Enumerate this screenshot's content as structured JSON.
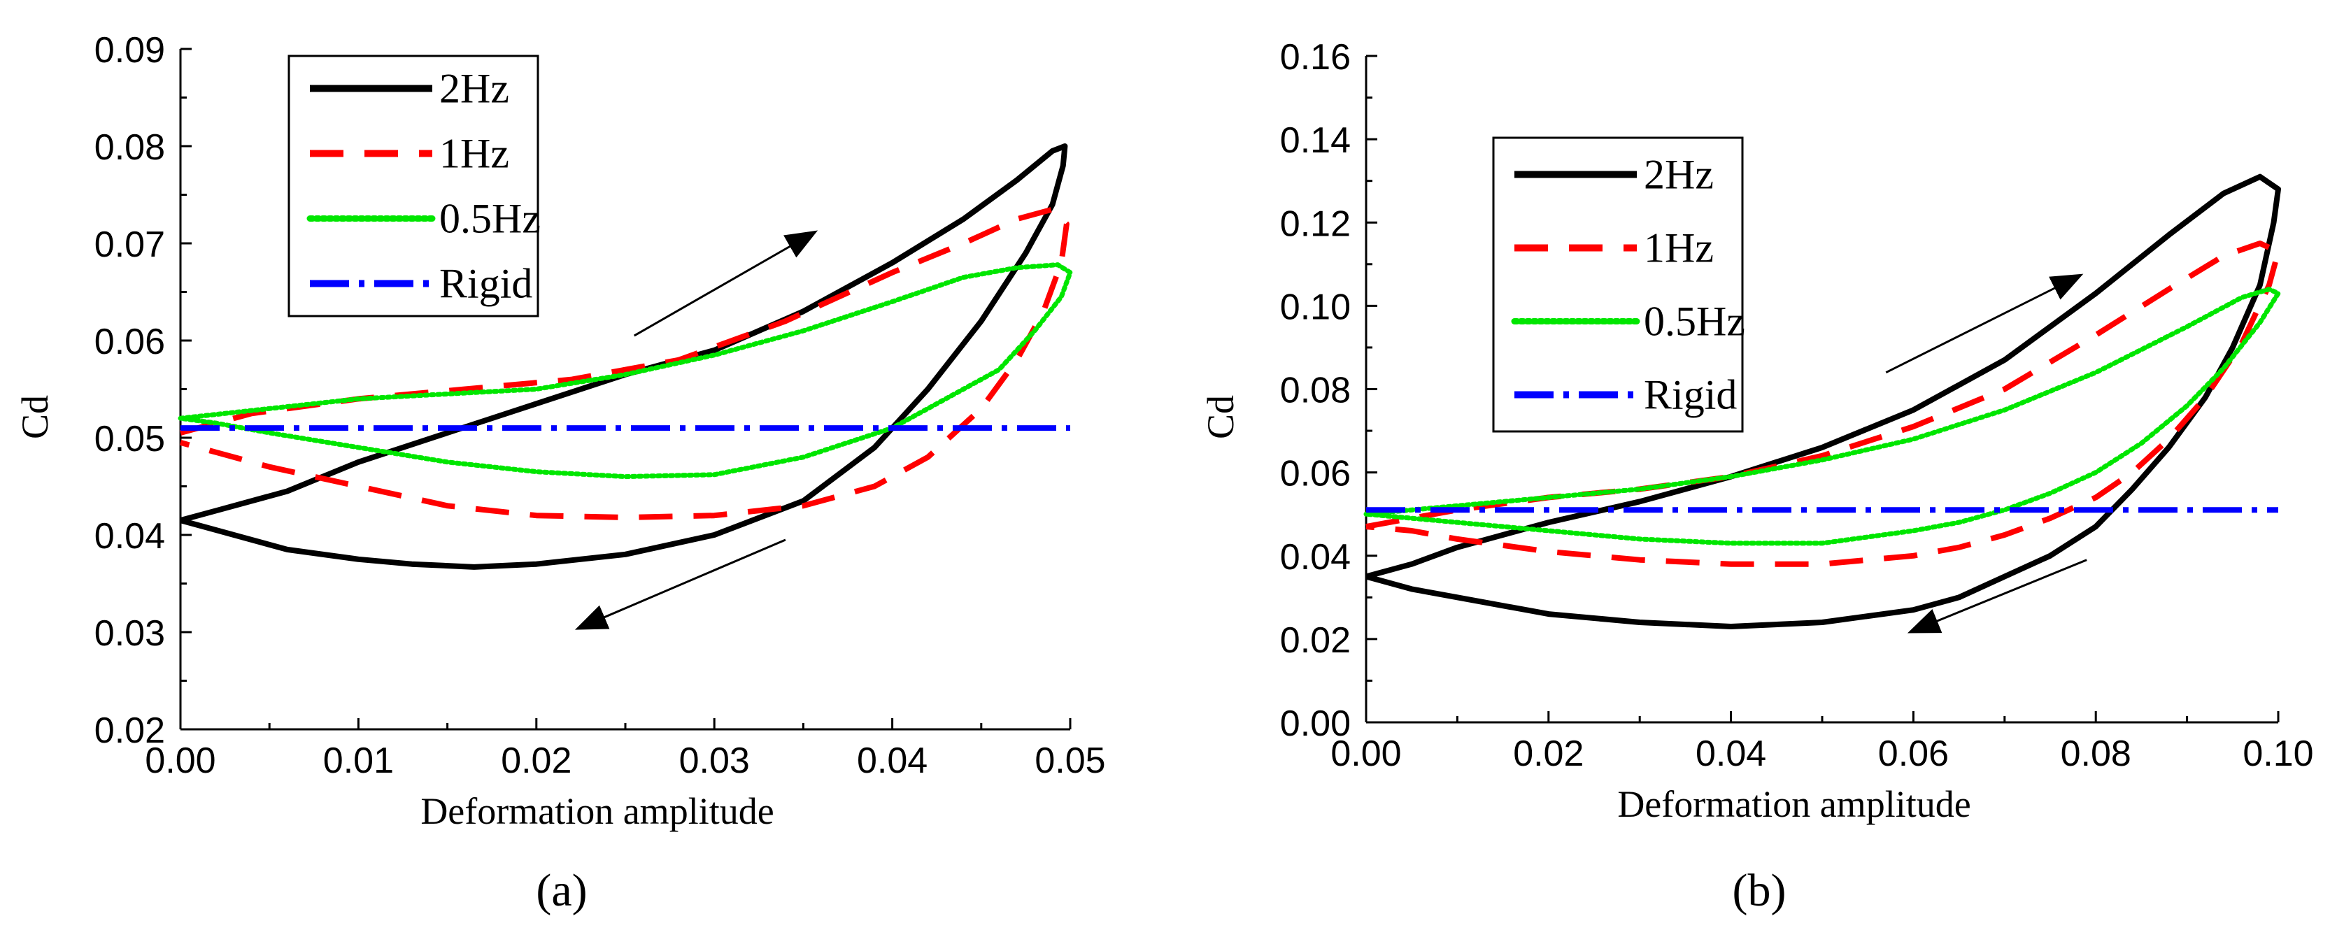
{
  "figure": {
    "panel_labels": [
      "(a)",
      "(b)"
    ]
  },
  "colors": {
    "2Hz": "#000000",
    "1Hz": "#ff0000",
    "0.5Hz": "#00e600",
    "Rigid": "#0000ff",
    "annotation": "#000000"
  },
  "chart_data": [
    {
      "type": "line",
      "panel": "(a)",
      "xlabel": "Deformation amplitude",
      "ylabel": "Cd",
      "xlim": [
        0,
        0.05
      ],
      "ylim": [
        0.02,
        0.09
      ],
      "xticks": [
        0.0,
        0.01,
        0.02,
        0.03,
        0.04,
        0.05
      ],
      "xtick_labels": [
        "0.00",
        "0.01",
        "0.02",
        "0.03",
        "0.04",
        "0.05"
      ],
      "yticks": [
        0.02,
        0.03,
        0.04,
        0.05,
        0.06,
        0.07,
        0.08,
        0.09
      ],
      "ytick_labels": [
        "0.02",
        "0.03",
        "0.04",
        "0.05",
        "0.06",
        "0.07",
        "0.08",
        "0.09"
      ],
      "grid": false,
      "legend": "top-left",
      "annotations": [
        {
          "type": "arrow",
          "direction": "up-right",
          "from": [
            0.0255,
            0.0605
          ],
          "to": [
            0.0355,
            0.071
          ]
        },
        {
          "type": "arrow",
          "direction": "down-left",
          "from": [
            0.034,
            0.0395
          ],
          "to": [
            0.0225,
            0.0305
          ]
        }
      ],
      "series": [
        {
          "name": "2Hz",
          "style": "solid",
          "x": [
            0,
            0.002,
            0.006,
            0.01,
            0.015,
            0.02,
            0.025,
            0.03,
            0.035,
            0.04,
            0.044,
            0.047,
            0.049,
            0.0497,
            0.0496,
            0.049,
            0.0475,
            0.045,
            0.042,
            0.039,
            0.035,
            0.03,
            0.025,
            0.02,
            0.0165,
            0.013,
            0.01,
            0.006,
            0.003,
            0
          ],
          "y": [
            0.0415,
            0.0425,
            0.0445,
            0.0475,
            0.0505,
            0.0535,
            0.0565,
            0.059,
            0.063,
            0.068,
            0.0725,
            0.0765,
            0.0795,
            0.08,
            0.078,
            0.074,
            0.069,
            0.062,
            0.055,
            0.049,
            0.0435,
            0.04,
            0.038,
            0.037,
            0.0367,
            0.037,
            0.0375,
            0.0385,
            0.04,
            0.0415
          ]
        },
        {
          "name": "1Hz",
          "style": "dashed",
          "x": [
            0,
            0.004,
            0.01,
            0.016,
            0.022,
            0.028,
            0.034,
            0.04,
            0.044,
            0.047,
            0.049,
            0.0498,
            0.0495,
            0.0485,
            0.047,
            0.045,
            0.042,
            0.039,
            0.035,
            0.03,
            0.025,
            0.02,
            0.015,
            0.01,
            0.005,
            0.002,
            0
          ],
          "y": [
            0.0505,
            0.0525,
            0.054,
            0.055,
            0.056,
            0.058,
            0.062,
            0.067,
            0.07,
            0.0725,
            0.0735,
            0.072,
            0.068,
            0.063,
            0.058,
            0.053,
            0.048,
            0.045,
            0.043,
            0.042,
            0.0418,
            0.042,
            0.043,
            0.045,
            0.047,
            0.0485,
            0.0495
          ]
        },
        {
          "name": "0.5Hz",
          "style": "dotted",
          "x": [
            0,
            0.005,
            0.01,
            0.015,
            0.02,
            0.025,
            0.03,
            0.035,
            0.04,
            0.044,
            0.047,
            0.0493,
            0.05,
            0.0495,
            0.048,
            0.046,
            0.043,
            0.04,
            0.035,
            0.03,
            0.025,
            0.02,
            0.015,
            0.01,
            0.005,
            0.002,
            0
          ],
          "y": [
            0.052,
            0.053,
            0.054,
            0.0545,
            0.055,
            0.0565,
            0.0585,
            0.061,
            0.064,
            0.0665,
            0.0675,
            0.0678,
            0.067,
            0.0645,
            0.061,
            0.057,
            0.054,
            0.051,
            0.048,
            0.0462,
            0.046,
            0.0465,
            0.0475,
            0.049,
            0.0505,
            0.0515,
            0.052
          ]
        },
        {
          "name": "Rigid",
          "style": "dash-dot",
          "x": [
            0,
            0.05
          ],
          "y": [
            0.051,
            0.051
          ]
        }
      ]
    },
    {
      "type": "line",
      "panel": "(b)",
      "xlabel": "Deformation amplitude",
      "ylabel": "Cd",
      "xlim": [
        0,
        0.1
      ],
      "ylim": [
        0.0,
        0.16
      ],
      "xticks": [
        0.0,
        0.02,
        0.04,
        0.06,
        0.08,
        0.1
      ],
      "xtick_labels": [
        "0.00",
        "0.02",
        "0.04",
        "0.06",
        "0.08",
        "0.10"
      ],
      "yticks": [
        0.0,
        0.02,
        0.04,
        0.06,
        0.08,
        0.1,
        0.12,
        0.14,
        0.16
      ],
      "ytick_labels": [
        "0.00",
        "0.02",
        "0.04",
        "0.06",
        "0.08",
        "0.10",
        "0.12",
        "0.14",
        "0.16"
      ],
      "grid": false,
      "legend": "top-left",
      "annotations": [
        {
          "type": "arrow",
          "direction": "up-right",
          "from": [
            0.057,
            0.084
          ],
          "to": [
            0.078,
            0.107
          ]
        },
        {
          "type": "arrow",
          "direction": "down-left",
          "from": [
            0.079,
            0.039
          ],
          "to": [
            0.06,
            0.022
          ]
        }
      ],
      "series": [
        {
          "name": "2Hz",
          "style": "solid",
          "x": [
            0,
            0.005,
            0.01,
            0.02,
            0.03,
            0.04,
            0.05,
            0.06,
            0.07,
            0.08,
            0.088,
            0.094,
            0.098,
            0.1,
            0.0995,
            0.098,
            0.095,
            0.092,
            0.088,
            0.084,
            0.08,
            0.075,
            0.07,
            0.065,
            0.06,
            0.05,
            0.04,
            0.03,
            0.02,
            0.01,
            0.005,
            0
          ],
          "y": [
            0.035,
            0.038,
            0.042,
            0.048,
            0.053,
            0.059,
            0.066,
            0.075,
            0.087,
            0.103,
            0.117,
            0.127,
            0.131,
            0.128,
            0.12,
            0.105,
            0.09,
            0.078,
            0.066,
            0.056,
            0.047,
            0.04,
            0.035,
            0.03,
            0.027,
            0.024,
            0.023,
            0.024,
            0.026,
            0.03,
            0.032,
            0.035
          ]
        },
        {
          "name": "1Hz",
          "style": "dashed",
          "x": [
            0,
            0.005,
            0.01,
            0.02,
            0.03,
            0.04,
            0.05,
            0.06,
            0.07,
            0.08,
            0.088,
            0.094,
            0.098,
            0.1,
            0.099,
            0.096,
            0.092,
            0.088,
            0.084,
            0.08,
            0.075,
            0.07,
            0.065,
            0.06,
            0.05,
            0.04,
            0.03,
            0.02,
            0.01,
            0.005,
            0
          ],
          "y": [
            0.047,
            0.049,
            0.051,
            0.054,
            0.056,
            0.059,
            0.064,
            0.071,
            0.08,
            0.093,
            0.104,
            0.112,
            0.115,
            0.113,
            0.105,
            0.091,
            0.078,
            0.068,
            0.06,
            0.054,
            0.049,
            0.045,
            0.042,
            0.04,
            0.038,
            0.038,
            0.039,
            0.041,
            0.044,
            0.046,
            0.047
          ]
        },
        {
          "name": "0.5Hz",
          "style": "dotted",
          "x": [
            0,
            0.01,
            0.02,
            0.03,
            0.04,
            0.05,
            0.06,
            0.07,
            0.08,
            0.09,
            0.096,
            0.099,
            0.1,
            0.098,
            0.094,
            0.09,
            0.085,
            0.08,
            0.075,
            0.07,
            0.065,
            0.06,
            0.05,
            0.04,
            0.03,
            0.02,
            0.01,
            0
          ],
          "y": [
            0.05,
            0.052,
            0.054,
            0.056,
            0.059,
            0.063,
            0.068,
            0.075,
            0.084,
            0.095,
            0.102,
            0.104,
            0.103,
            0.096,
            0.085,
            0.076,
            0.067,
            0.06,
            0.055,
            0.051,
            0.048,
            0.046,
            0.043,
            0.043,
            0.044,
            0.046,
            0.048,
            0.05
          ]
        },
        {
          "name": "Rigid",
          "style": "dash-dot",
          "x": [
            0,
            0.1
          ],
          "y": [
            0.051,
            0.051
          ]
        }
      ]
    }
  ]
}
